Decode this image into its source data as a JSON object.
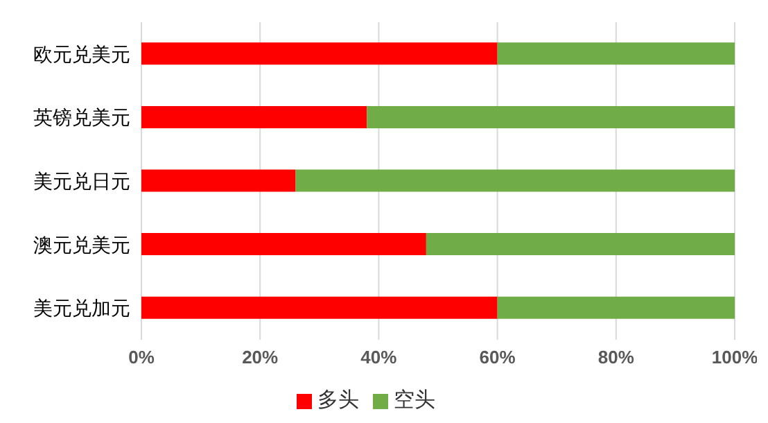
{
  "chart_data": {
    "type": "bar",
    "orientation": "horizontal",
    "stacked": true,
    "categories": [
      "欧元兑美元",
      "英镑兑美元",
      "美元兑日元",
      "澳元兑美元",
      "美元兑加元"
    ],
    "series": [
      {
        "name": "多头",
        "color": "#ff0000",
        "values": [
          60,
          38,
          26,
          48,
          60
        ]
      },
      {
        "name": "空头",
        "color": "#70ad47",
        "values": [
          40,
          62,
          74,
          52,
          40
        ]
      }
    ],
    "xlim": [
      0,
      100
    ],
    "xticks": [
      {
        "value": 0,
        "label": "0%"
      },
      {
        "value": 20,
        "label": "20%"
      },
      {
        "value": 40,
        "label": "40%"
      },
      {
        "value": 60,
        "label": "60%"
      },
      {
        "value": 80,
        "label": "80%"
      },
      {
        "value": 100,
        "label": "100%"
      }
    ],
    "grid": "x",
    "legend": "bottom"
  }
}
